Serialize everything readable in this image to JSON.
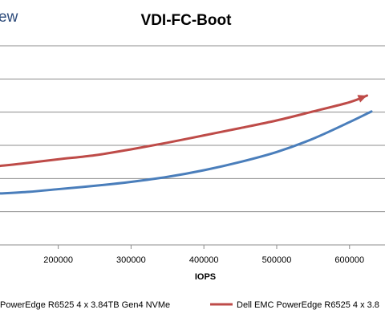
{
  "brand": {
    "text": "ew"
  },
  "chart_data": {
    "type": "line",
    "title": "VDI-FC-Boot",
    "xlabel": "IOPS",
    "ylabel": "",
    "xlim": [
      120000,
      630000
    ],
    "ylim": [
      0,
      6
    ],
    "x_ticks": [
      200000,
      300000,
      400000,
      500000,
      600000
    ],
    "x_tick_labels": [
      "200000",
      "300000",
      "400000",
      "500000",
      "600000"
    ],
    "grid": true,
    "legend_position": "bottom",
    "series": [
      {
        "name": "PowerEdge R6525 4 x 3.84TB Gen4 NVMe",
        "color": "#4a7ebb",
        "points": [
          [
            120000,
            1.55
          ],
          [
            160000,
            1.6
          ],
          [
            200000,
            1.68
          ],
          [
            250000,
            1.78
          ],
          [
            300000,
            1.9
          ],
          [
            350000,
            2.05
          ],
          [
            400000,
            2.25
          ],
          [
            450000,
            2.5
          ],
          [
            500000,
            2.8
          ],
          [
            550000,
            3.2
          ],
          [
            600000,
            3.7
          ],
          [
            630000,
            4.02
          ]
        ]
      },
      {
        "name": "Dell EMC PowerEdge R6525 4 x 3.8",
        "color": "#be4b48",
        "marker_end": "arrow",
        "points": [
          [
            120000,
            2.38
          ],
          [
            150000,
            2.45
          ],
          [
            200000,
            2.58
          ],
          [
            250000,
            2.7
          ],
          [
            300000,
            2.88
          ],
          [
            350000,
            3.08
          ],
          [
            400000,
            3.3
          ],
          [
            450000,
            3.52
          ],
          [
            500000,
            3.75
          ],
          [
            550000,
            4.02
          ],
          [
            600000,
            4.3
          ],
          [
            624000,
            4.5
          ]
        ]
      }
    ]
  }
}
